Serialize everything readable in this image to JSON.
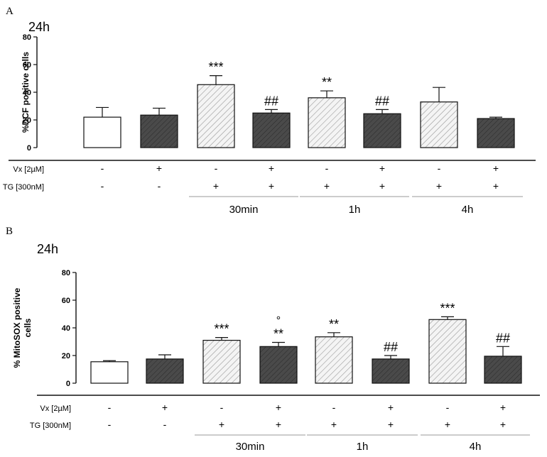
{
  "chart_data": [
    {
      "type": "bar",
      "panel": "A",
      "time_label": "24h",
      "ylabel": "%DCF positive cells",
      "ylim": [
        0,
        80
      ],
      "yticks": [
        0,
        20,
        40,
        60,
        80
      ],
      "categories": [
        "-/-",
        "+/-",
        "-/+ 30min",
        "+/+ 30min",
        "-/+ 1h",
        "+/+ 1h",
        "-/+ 4h",
        "+/+ 4h"
      ],
      "values": [
        22,
        23.5,
        45.5,
        25,
        36,
        24.5,
        33,
        21
      ],
      "errors": [
        7,
        5,
        6.5,
        2.5,
        5,
        3,
        10.5,
        1
      ],
      "fills": [
        "white",
        "dark",
        "hatch",
        "dark",
        "hatch",
        "dark",
        "hatch",
        "dark"
      ],
      "annotations": [
        "",
        "",
        "***",
        "##",
        "**",
        "##",
        "",
        ""
      ],
      "annotations_top": [
        "",
        "",
        "",
        "",
        "",
        "",
        "",
        ""
      ],
      "conditions": [
        {
          "label": "Vx [2µM]",
          "values": [
            "-",
            "+",
            "-",
            "+",
            "-",
            "+",
            "-",
            "+"
          ]
        },
        {
          "label": "TG [300nM]",
          "values": [
            "-",
            "-",
            "+",
            "+",
            "+",
            "+",
            "+",
            "+"
          ]
        }
      ],
      "groups": [
        {
          "label": "30min",
          "bars": [
            2,
            3
          ]
        },
        {
          "label": "1h",
          "bars": [
            4,
            5
          ]
        },
        {
          "label": "4h",
          "bars": [
            6,
            7
          ]
        }
      ]
    },
    {
      "type": "bar",
      "panel": "B",
      "time_label": "24h",
      "ylabel": "% MitoSOX positive cells",
      "ylabel_lines": [
        "% MitoSOX positive",
        "cells"
      ],
      "ylim": [
        0,
        80
      ],
      "yticks": [
        0,
        20,
        40,
        60,
        80
      ],
      "categories": [
        "-/-",
        "+/-",
        "-/+ 30min",
        "+/+ 30min",
        "-/+ 1h",
        "+/+ 1h",
        "-/+ 4h",
        "+/+ 4h"
      ],
      "values": [
        15.5,
        17.5,
        31,
        26.5,
        33.5,
        17.5,
        46,
        19.5
      ],
      "errors": [
        0.8,
        3,
        2,
        3,
        3,
        2.5,
        2,
        7
      ],
      "fills": [
        "white",
        "dark",
        "hatch",
        "dark",
        "hatch",
        "dark",
        "hatch",
        "dark"
      ],
      "annotations": [
        "",
        "",
        "***",
        "**",
        "**",
        "##",
        "***",
        "##"
      ],
      "annotations_top": [
        "",
        "",
        "",
        "°",
        "",
        "",
        "",
        ""
      ],
      "conditions": [
        {
          "label": "Vx [2µM]",
          "values": [
            "-",
            "+",
            "-",
            "+",
            "-",
            "+",
            "-",
            "+"
          ]
        },
        {
          "label": "TG [300nM]",
          "values": [
            "-",
            "-",
            "+",
            "+",
            "+",
            "+",
            "+",
            "+"
          ]
        }
      ],
      "groups": [
        {
          "label": "30min",
          "bars": [
            2,
            3
          ]
        },
        {
          "label": "1h",
          "bars": [
            4,
            5
          ]
        },
        {
          "label": "4h",
          "bars": [
            6,
            7
          ]
        }
      ]
    }
  ],
  "colors": {
    "dark_bar": "#4a4a4a",
    "hatch_bar_bg": "#f4f4f4",
    "hatch_line": "#9a9a9a",
    "group_line": "#999999",
    "axis": "#111111"
  }
}
